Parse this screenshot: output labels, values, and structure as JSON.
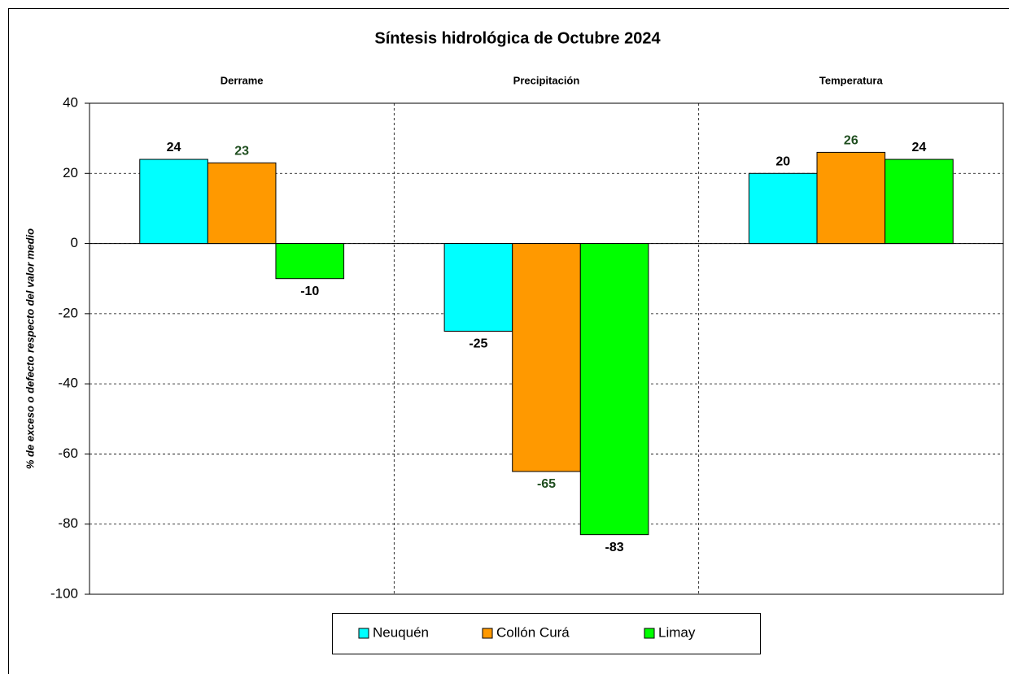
{
  "chart_data": {
    "type": "bar",
    "title": "Síntesis hidrológica de Octubre 2024",
    "y_label": "% de exceso o defecto respecto del valor medio",
    "categories": [
      "Derrame",
      "Precipitación",
      "Temperatura"
    ],
    "series": [
      {
        "name": "Neuquén",
        "color": "#00ffff",
        "label_color": "#000000",
        "values": [
          24,
          -25,
          20
        ]
      },
      {
        "name": "Collón Curá",
        "color": "#ff9900",
        "label_color": "#1f4e1f",
        "values": [
          23,
          -65,
          26
        ]
      },
      {
        "name": "Limay",
        "color": "#00ff00",
        "label_color": "#000000",
        "values": [
          -10,
          -83,
          24
        ]
      }
    ],
    "ylim": [
      -100,
      40
    ],
    "yticks": [
      -100,
      -80,
      -60,
      -40,
      -20,
      0,
      20,
      40
    ],
    "grid": true,
    "legend": "bottom"
  }
}
